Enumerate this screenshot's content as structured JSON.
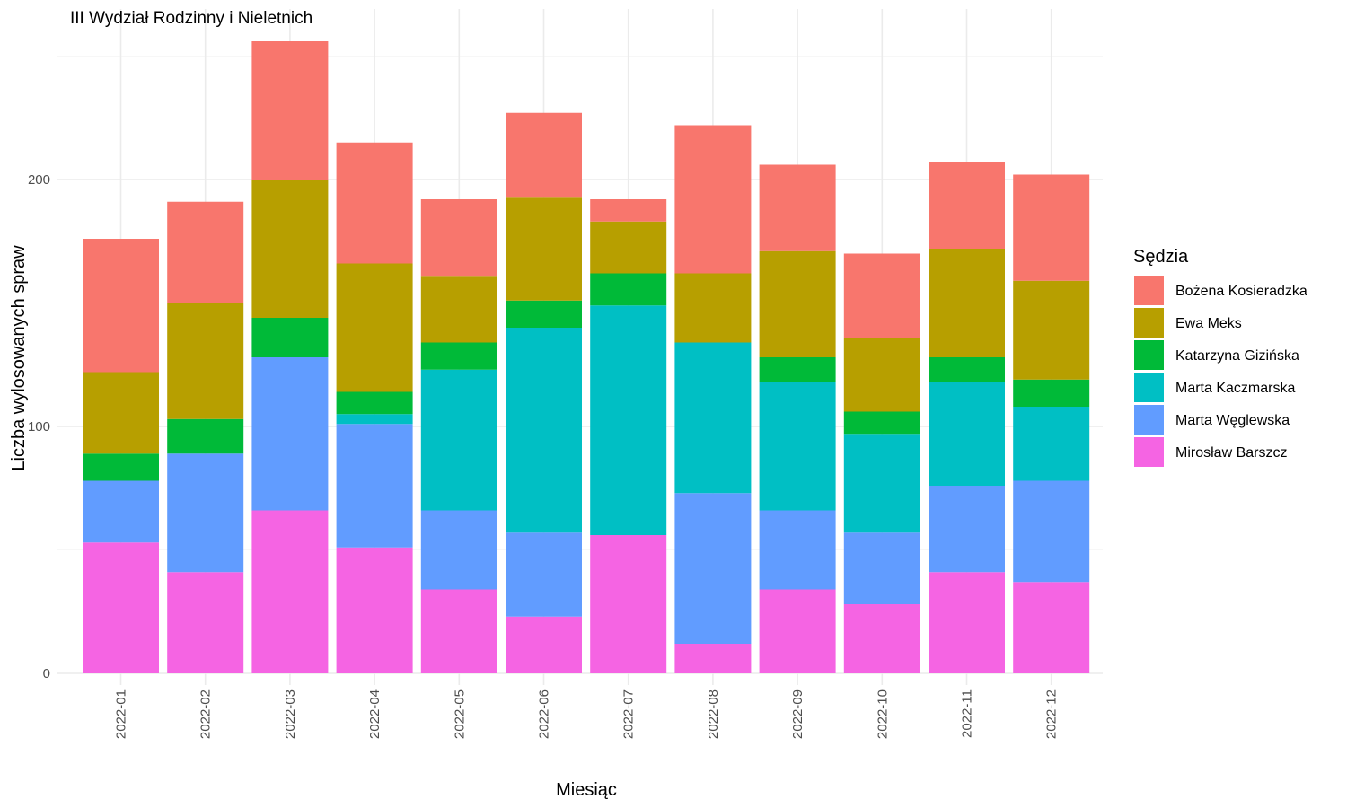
{
  "chart_data": {
    "type": "bar",
    "stacked": true,
    "title": "III Wydział Rodzinny i Nieletnich",
    "xlabel": "Miesiąc",
    "ylabel": "Liczba wylosowanych spraw",
    "ylim": [
      0,
      262
    ],
    "yticks": [
      0,
      100,
      200
    ],
    "categories": [
      "2022-01",
      "2022-02",
      "2022-03",
      "2022-04",
      "2022-05",
      "2022-06",
      "2022-07",
      "2022-08",
      "2022-09",
      "2022-10",
      "2022-11",
      "2022-12"
    ],
    "legend_title": "Sędzia",
    "legend_position": "right",
    "grid": true,
    "series": [
      {
        "name": "Bożena Kosieradzka",
        "color": "#F8766D",
        "values": [
          54,
          41,
          56,
          49,
          31,
          34,
          9,
          60,
          35,
          34,
          35,
          43
        ]
      },
      {
        "name": "Ewa Meks",
        "color": "#B79F00",
        "values": [
          33,
          47,
          56,
          52,
          27,
          42,
          21,
          28,
          43,
          30,
          44,
          40
        ]
      },
      {
        "name": "Katarzyna Gizińska",
        "color": "#00BA38",
        "values": [
          11,
          14,
          16,
          9,
          11,
          11,
          13,
          0,
          10,
          9,
          10,
          11
        ]
      },
      {
        "name": "Marta Kaczmarska",
        "color": "#00BFC4",
        "values": [
          0,
          0,
          0,
          4,
          57,
          83,
          93,
          61,
          52,
          40,
          42,
          30
        ]
      },
      {
        "name": "Marta Węglewska",
        "color": "#619CFF",
        "values": [
          25,
          48,
          62,
          50,
          32,
          34,
          0,
          61,
          32,
          29,
          35,
          41
        ]
      },
      {
        "name": "Mirosław Barszcz",
        "color": "#F564E3",
        "values": [
          53,
          41,
          66,
          51,
          34,
          23,
          56,
          12,
          34,
          28,
          41,
          37
        ]
      }
    ]
  }
}
